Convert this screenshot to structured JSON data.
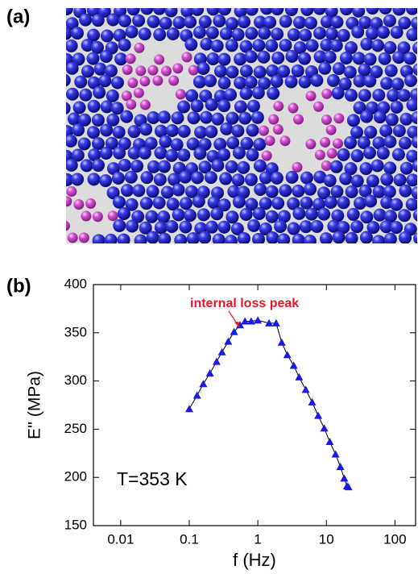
{
  "panel_a": {
    "label": "(a)"
  },
  "chart_data": {
    "type": "scatter-line",
    "panel_label": "(b)",
    "x_label": "f (Hz)",
    "y_label": "E'' (MPa)",
    "annotations": [
      "internal loss peak",
      "T=353 K"
    ],
    "xscale": "log",
    "xlim": [
      0.004,
      200
    ],
    "xticks": [
      0.01,
      0.1,
      1,
      10,
      100
    ],
    "ylim": [
      150,
      400
    ],
    "yticks": [
      150,
      200,
      250,
      300,
      350,
      400
    ],
    "color": "#1a1ae6",
    "x": [
      0.1,
      0.13,
      0.16,
      0.2,
      0.25,
      0.3,
      0.37,
      0.45,
      0.55,
      0.65,
      0.8,
      1.0,
      1.46,
      1.85,
      2.23,
      2.69,
      3.34,
      4.0,
      5.0,
      6.2,
      7.6,
      9.3,
      11.2,
      13.6,
      16,
      18.2,
      20,
      21
    ],
    "values": [
      271,
      285,
      297,
      308,
      320,
      330,
      341,
      351,
      358,
      362,
      362,
      363,
      360,
      360,
      340,
      327,
      316,
      304,
      291,
      278,
      264,
      251,
      237,
      224,
      211,
      199,
      191,
      190
    ]
  }
}
